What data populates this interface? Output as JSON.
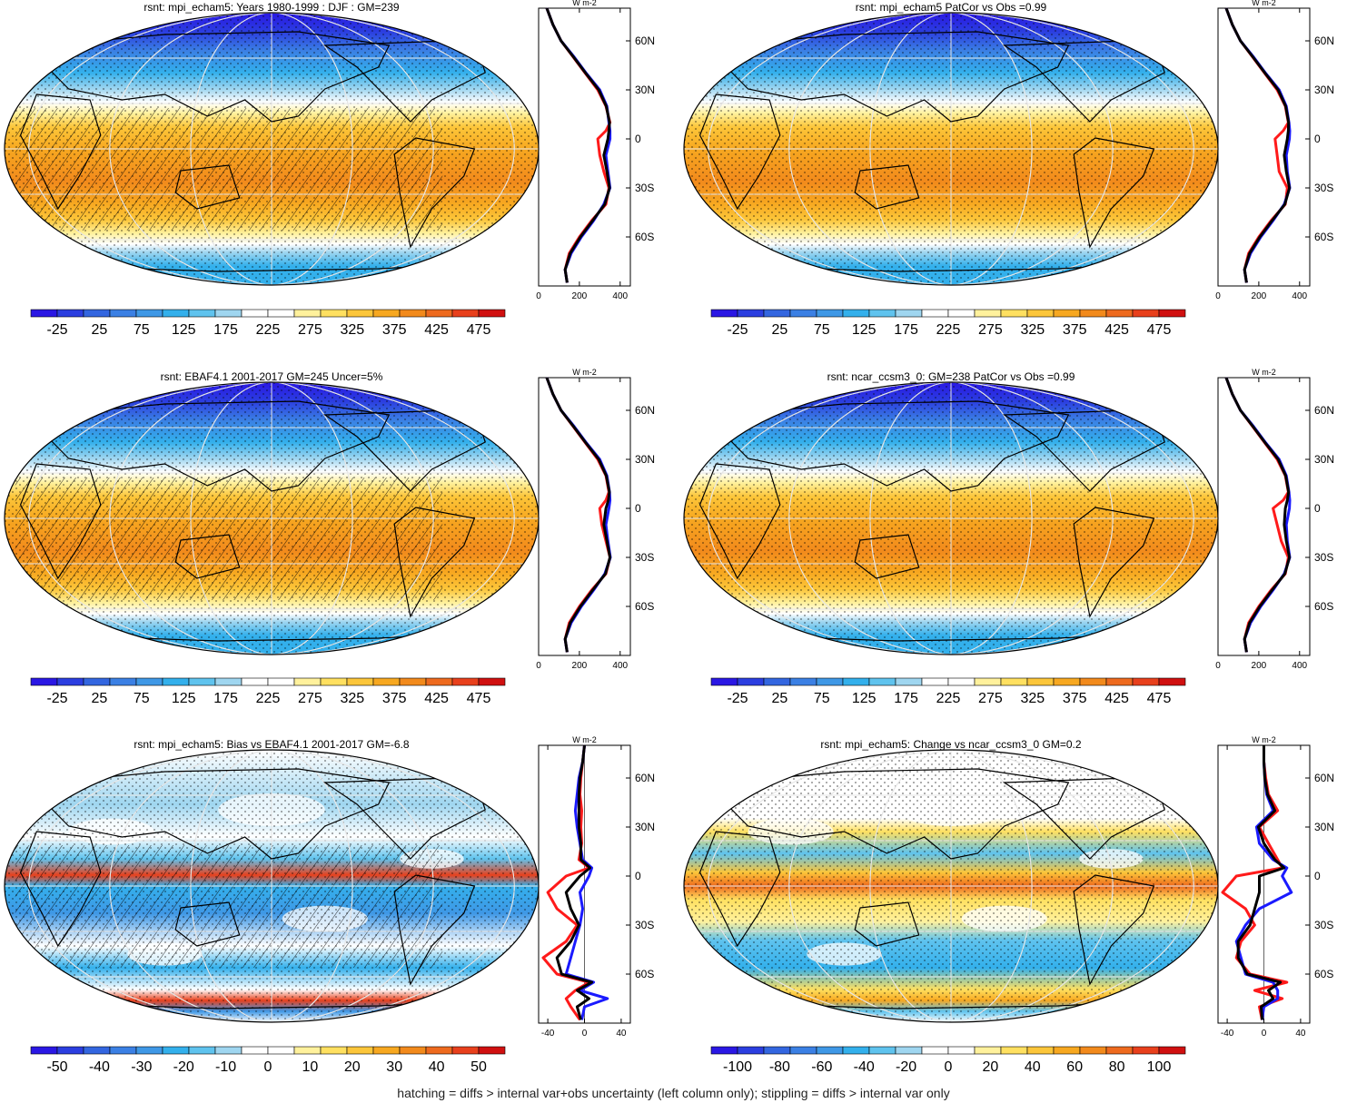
{
  "colors": {
    "cmap": [
      "#2a17e4",
      "#2b3ee0",
      "#3366e0",
      "#3b80e4",
      "#3f98e6",
      "#33b0ec",
      "#5fc3ee",
      "#9fd6f0",
      "#ffffff",
      "#ffffff",
      "#fff19c",
      "#ffe060",
      "#fcc63a",
      "#f7a820",
      "#f28a1c",
      "#ee6a1e",
      "#e8401c",
      "#d01010"
    ],
    "land": "#000000",
    "grid": "#e6e6e6",
    "obs_line": "#ff1a1a",
    "model_line": "#1a1aff",
    "mean_line": "#000000"
  },
  "footnote": "hatching = diffs > internal var+obs uncertainty (left column only); stippling = diffs > internal var only",
  "chart_data": [
    {
      "type": "heatmap",
      "title": "rsnt: mpi_echam5: Years 1980-1999 : DJF : GM=239",
      "colorbar": {
        "ticks": [
          "-25",
          "25",
          "75",
          "125",
          "175",
          "225",
          "275",
          "325",
          "375",
          "425",
          "475"
        ]
      },
      "profile": {
        "type": "line",
        "unit": "W m-2",
        "xticks": [
          "0",
          "200",
          "400"
        ],
        "xlim": [
          0,
          450
        ],
        "yticks": [
          "60N",
          "30N",
          "0",
          "30S",
          "60S"
        ],
        "ylim": [
          -90,
          80
        ],
        "lat": [
          80,
          70,
          60,
          50,
          40,
          30,
          20,
          10,
          5,
          0,
          -10,
          -20,
          -30,
          -40,
          -50,
          -60,
          -70,
          -80,
          -88
        ],
        "series": [
          {
            "values": [
              40,
              70,
              110,
              170,
              230,
              290,
              330,
              350,
              330,
              290,
              300,
              320,
              345,
              330,
              260,
              200,
              150,
              130,
              140
            ]
          },
          {
            "values": [
              40,
              70,
              110,
              175,
              235,
              300,
              335,
              345,
              350,
              350,
              330,
              340,
              350,
              320,
              270,
              210,
              160,
              130,
              140
            ]
          },
          {
            "values": [
              40,
              70,
              110,
              172,
              232,
              295,
              332,
              348,
              345,
              340,
              320,
              335,
              348,
              325,
              265,
              205,
              155,
              130,
              140
            ]
          }
        ]
      }
    },
    {
      "type": "heatmap",
      "title": "rsnt: mpi_echam5 PatCor vs Obs =0.99",
      "colorbar": {
        "ticks": [
          "-25",
          "25",
          "75",
          "125",
          "175",
          "225",
          "275",
          "325",
          "375",
          "425",
          "475"
        ]
      },
      "profile": {
        "type": "line",
        "unit": "W m-2",
        "xticks": [
          "0",
          "200",
          "400"
        ],
        "xlim": [
          0,
          450
        ],
        "yticks": [
          "60N",
          "30N",
          "0",
          "30S",
          "60S"
        ],
        "ylim": [
          -90,
          80
        ],
        "lat": [
          80,
          70,
          60,
          50,
          40,
          30,
          20,
          10,
          5,
          0,
          -10,
          -20,
          -30,
          -40,
          -50,
          -60,
          -70,
          -80,
          -88
        ],
        "series": [
          {
            "values": [
              40,
              70,
              110,
              170,
              230,
              290,
              330,
              345,
              320,
              280,
              290,
              300,
              340,
              330,
              260,
              200,
              150,
              130,
              140
            ]
          },
          {
            "values": [
              40,
              70,
              110,
              175,
              235,
              300,
              335,
              348,
              352,
              350,
              335,
              340,
              352,
              325,
              270,
              210,
              160,
              130,
              140
            ]
          },
          {
            "values": [
              40,
              70,
              110,
              172,
              232,
              295,
              332,
              346,
              345,
              340,
              325,
              335,
              350,
              328,
              265,
              205,
              155,
              130,
              140
            ]
          }
        ]
      }
    },
    {
      "type": "heatmap",
      "title": "rsnt: EBAF4.1 2001-2017 GM=245 Uncer=5%",
      "colorbar": {
        "ticks": [
          "-25",
          "25",
          "75",
          "125",
          "175",
          "225",
          "275",
          "325",
          "375",
          "425",
          "475"
        ]
      },
      "profile": {
        "type": "line",
        "unit": "W m-2",
        "xticks": [
          "0",
          "200",
          "400"
        ],
        "xlim": [
          0,
          450
        ],
        "yticks": [
          "60N",
          "30N",
          "0",
          "30S",
          "60S"
        ],
        "ylim": [
          -90,
          80
        ],
        "lat": [
          80,
          70,
          60,
          50,
          40,
          30,
          20,
          10,
          5,
          0,
          -10,
          -20,
          -30,
          -40,
          -50,
          -60,
          -70,
          -80,
          -88
        ],
        "series": [
          {
            "values": [
              40,
              70,
              110,
              170,
              230,
              290,
              330,
              345,
              330,
              300,
              310,
              330,
              350,
              330,
              260,
              200,
              150,
              130,
              140
            ]
          },
          {
            "values": [
              40,
              70,
              110,
              175,
              235,
              300,
              335,
              348,
              350,
              345,
              330,
              340,
              352,
              325,
              270,
              210,
              160,
              130,
              140
            ]
          },
          {
            "values": [
              40,
              70,
              110,
              172,
              232,
              295,
              332,
              347,
              342,
              330,
              320,
              335,
              350,
              328,
              265,
              205,
              155,
              130,
              140
            ]
          }
        ]
      }
    },
    {
      "type": "heatmap",
      "title": "rsnt: ncar_ccsm3_0: GM=238 PatCor vs Obs =0.99",
      "colorbar": {
        "ticks": [
          "-25",
          "25",
          "75",
          "125",
          "175",
          "225",
          "275",
          "325",
          "375",
          "425",
          "475"
        ]
      },
      "profile": {
        "type": "line",
        "unit": "W m-2",
        "xticks": [
          "0",
          "200",
          "400"
        ],
        "xlim": [
          0,
          450
        ],
        "yticks": [
          "60N",
          "30N",
          "0",
          "30S",
          "60S"
        ],
        "ylim": [
          -90,
          80
        ],
        "lat": [
          80,
          70,
          60,
          50,
          40,
          30,
          20,
          10,
          5,
          0,
          -10,
          -20,
          -30,
          -40,
          -50,
          -60,
          -70,
          -80,
          -88
        ],
        "series": [
          {
            "values": [
              40,
              70,
              110,
              170,
              230,
              290,
              330,
              345,
              320,
              270,
              290,
              310,
              345,
              330,
              260,
              200,
              150,
              130,
              140
            ]
          },
          {
            "values": [
              40,
              70,
              110,
              175,
              235,
              300,
              335,
              348,
              352,
              350,
              335,
              340,
              352,
              325,
              270,
              210,
              160,
              130,
              140
            ]
          },
          {
            "values": [
              40,
              70,
              110,
              172,
              232,
              295,
              332,
              346,
              340,
              330,
              325,
              335,
              350,
              328,
              265,
              205,
              155,
              130,
              140
            ]
          }
        ]
      }
    },
    {
      "type": "heatmap",
      "title": "rsnt: mpi_echam5: Bias vs EBAF4.1 2001-2017 GM=-6.8",
      "colorbar": {
        "ticks": [
          "-50",
          "-40",
          "-30",
          "-20",
          "-10",
          "0",
          "10",
          "20",
          "30",
          "40",
          "50"
        ]
      },
      "profile": {
        "type": "line",
        "unit": "W m-2",
        "xticks": [
          "-40",
          "0",
          "40"
        ],
        "xlim": [
          -50,
          50
        ],
        "yticks": [
          "60N",
          "30N",
          "0",
          "30S",
          "60S"
        ],
        "ylim": [
          -90,
          80
        ],
        "lat": [
          80,
          70,
          60,
          50,
          40,
          30,
          20,
          10,
          5,
          0,
          -10,
          -20,
          -30,
          -40,
          -50,
          -60,
          -65,
          -70,
          -75,
          -80,
          -88
        ],
        "series": [
          {
            "values": [
              0,
              -2,
              -4,
              -5,
              -3,
              -4,
              -3,
              -6,
              5,
              -20,
              -40,
              -30,
              -8,
              -20,
              -45,
              -30,
              5,
              -10,
              -20,
              -15,
              -5
            ]
          },
          {
            "values": [
              0,
              -2,
              -6,
              -8,
              -10,
              -8,
              -5,
              -2,
              8,
              5,
              -5,
              -2,
              -5,
              -10,
              -15,
              -20,
              10,
              -5,
              25,
              0,
              -3
            ]
          },
          {
            "values": [
              0,
              -2,
              -5,
              -6,
              -6,
              -6,
              -4,
              -4,
              6,
              -5,
              -20,
              -15,
              -6,
              -15,
              -30,
              -25,
              8,
              -8,
              5,
              -8,
              -4
            ]
          }
        ]
      }
    },
    {
      "type": "heatmap",
      "title": "rsnt: mpi_echam5: Change vs ncar_ccsm3_0 GM=0.2",
      "colorbar": {
        "ticks": [
          "-100",
          "-80",
          "-60",
          "-40",
          "-20",
          "0",
          "20",
          "40",
          "60",
          "80",
          "100"
        ]
      },
      "profile": {
        "type": "line",
        "unit": "W m-2",
        "xticks": [
          "-40",
          "0",
          "40"
        ],
        "xlim": [
          -50,
          50
        ],
        "yticks": [
          "60N",
          "30N",
          "0",
          "30S",
          "60S"
        ],
        "ylim": [
          -90,
          80
        ],
        "lat": [
          80,
          70,
          60,
          50,
          40,
          30,
          20,
          10,
          5,
          0,
          -10,
          -20,
          -30,
          -40,
          -50,
          -60,
          -65,
          -70,
          -75,
          -80,
          -88
        ],
        "series": [
          {
            "values": [
              0,
              0,
              2,
              5,
              15,
              -5,
              5,
              15,
              20,
              -30,
              -45,
              -20,
              -10,
              -25,
              -30,
              -15,
              25,
              -10,
              20,
              -5,
              -2
            ]
          },
          {
            "values": [
              0,
              0,
              1,
              3,
              10,
              -8,
              -5,
              10,
              25,
              20,
              30,
              -5,
              -20,
              -30,
              -25,
              -20,
              10,
              15,
              15,
              0,
              -2
            ]
          },
          {
            "values": [
              0,
              0,
              1,
              4,
              12,
              -6,
              0,
              12,
              22,
              -5,
              -5,
              -10,
              -15,
              -28,
              -28,
              -18,
              18,
              5,
              10,
              -3,
              -2
            ]
          }
        ]
      }
    }
  ]
}
